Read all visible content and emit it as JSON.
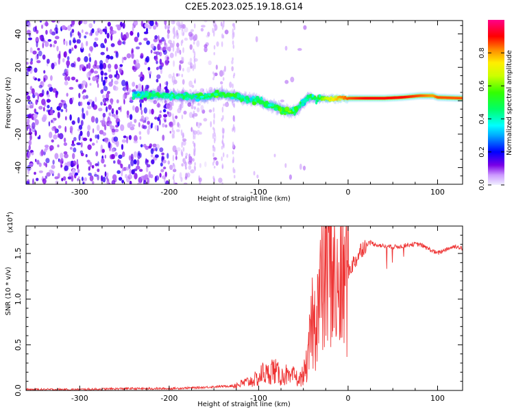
{
  "title": "C2E5.2023.025.19.18.G14",
  "colors": {
    "snr_line": "#ee3333",
    "axis": "#000000"
  },
  "chart_data": [
    {
      "type": "heatmap",
      "xlabel": "Height of straight line (km)",
      "ylabel": "Frequency (Hz)",
      "xlim": [
        -360,
        128
      ],
      "ylim": [
        -50,
        48
      ],
      "xticks": [
        -300,
        -200,
        -100,
        0,
        100
      ],
      "xtick_labels": [
        "-300",
        "-200",
        "-100",
        "0",
        "100"
      ],
      "yticks": [
        -40,
        -20,
        0,
        20,
        40
      ],
      "ytick_labels": [
        "-40",
        "-20",
        "0",
        "20",
        "40"
      ],
      "colorbar": {
        "label": "Normalized spectral amplitude",
        "range": [
          0,
          1
        ],
        "ticks": [
          0,
          0.2,
          0.4,
          0.6,
          0.8
        ],
        "tick_labels": [
          "0.0",
          "0.2",
          "0.4",
          "0.6",
          "0.8"
        ],
        "colormap": "rainbow"
      },
      "ridge": {
        "description_free": true,
        "points": [
          [
            -240,
            3.5
          ],
          [
            -220,
            3.5
          ],
          [
            -200,
            3.0
          ],
          [
            -180,
            2.5
          ],
          [
            -160,
            2.0
          ],
          [
            -145,
            4.0
          ],
          [
            -130,
            3.0
          ],
          [
            -115,
            1.0
          ],
          [
            -100,
            0.0
          ],
          [
            -90,
            -2.0
          ],
          [
            -80,
            -4.0
          ],
          [
            -70,
            -6.0
          ],
          [
            -60,
            -6.5
          ],
          [
            -55,
            -4.0
          ],
          [
            -50,
            -1.0
          ],
          [
            -45,
            2.0
          ],
          [
            -40,
            2.0
          ],
          [
            -35,
            0.5
          ],
          [
            -30,
            1.5
          ],
          [
            -20,
            1.0
          ],
          [
            -10,
            1.5
          ],
          [
            0,
            1.5
          ],
          [
            20,
            1.5
          ],
          [
            40,
            1.5
          ],
          [
            60,
            2.0
          ],
          [
            80,
            3.0
          ],
          [
            95,
            3.0
          ],
          [
            100,
            2.0
          ],
          [
            128,
            1.5
          ]
        ],
        "amplitude": [
          0.4,
          0.45,
          0.45,
          0.45,
          0.45,
          0.55,
          0.5,
          0.45,
          0.5,
          0.5,
          0.5,
          0.55,
          0.5,
          0.45,
          0.4,
          0.45,
          0.5,
          0.45,
          0.6,
          0.7,
          0.8,
          0.85,
          0.9,
          0.9,
          0.9,
          0.85,
          0.8,
          0.85,
          0.85
        ]
      }
    },
    {
      "type": "line",
      "xlabel": "Height of straight line (km)",
      "ylabel": "SNR (10 * v/v)",
      "multiplier": "(x10",
      "multiplier_exp": "4",
      "xlim": [
        -360,
        128
      ],
      "ylim": [
        0,
        1.8
      ],
      "xticks": [
        -300,
        -200,
        -100,
        0,
        100
      ],
      "xtick_labels": [
        "-300",
        "-200",
        "-100",
        "0",
        "100"
      ],
      "yticks": [
        0,
        0.5,
        1.0,
        1.5
      ],
      "ytick_labels": [
        "0.0",
        "0.5",
        "1.0",
        "1.5"
      ],
      "series": [
        {
          "x": [
            -360,
            -300,
            -250,
            -200,
            -170,
            -150,
            -130,
            -120,
            -110,
            -100,
            -95,
            -90,
            -85,
            -80,
            -75,
            -70,
            -65,
            -60,
            -55,
            -50,
            -45,
            -40,
            -38,
            -35,
            -32,
            -30,
            -28,
            -25,
            -22,
            -20,
            -18,
            -15,
            -12,
            -10,
            -8,
            -5,
            0,
            5,
            10,
            15,
            20,
            25,
            30,
            40,
            50,
            60,
            70,
            80,
            90,
            100,
            110,
            120,
            128
          ],
          "y": [
            0.01,
            0.01,
            0.02,
            0.02,
            0.03,
            0.04,
            0.05,
            0.07,
            0.1,
            0.13,
            0.2,
            0.17,
            0.23,
            0.2,
            0.15,
            0.18,
            0.12,
            0.17,
            0.1,
            0.18,
            0.3,
            0.8,
            0.65,
            1.0,
            0.9,
            1.2,
            1.05,
            1.4,
            1.2,
            1.7,
            1.45,
            1.15,
            1.05,
            1.1,
            1.15,
            1.2,
            1.3,
            1.38,
            1.45,
            1.55,
            1.6,
            1.62,
            1.6,
            1.58,
            1.57,
            1.58,
            1.6,
            1.6,
            1.55,
            1.5,
            1.55,
            1.58,
            1.55
          ]
        }
      ]
    }
  ]
}
